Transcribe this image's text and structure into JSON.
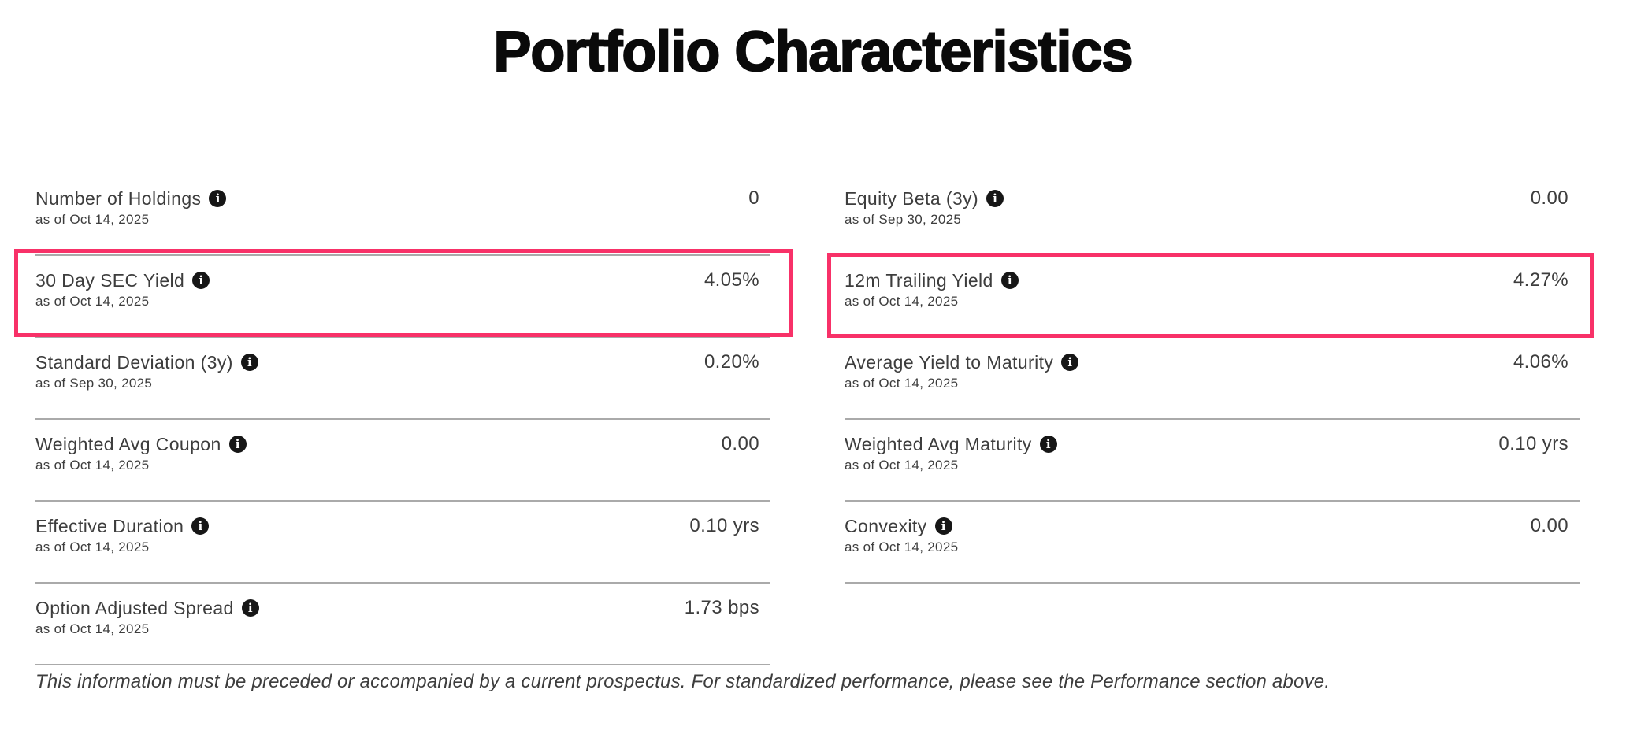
{
  "page": {
    "title": "Portfolio Characteristics",
    "disclaimer": "This information must be preceded or accompanied by a current prospectus. For standardized performance, please see the Performance section above."
  },
  "icons": {
    "info_glyph": "i"
  },
  "colors": {
    "highlight_border": "#F83168",
    "divider": "#AAAAAA",
    "text": "#3D3D3D",
    "title": "#0A0A0A",
    "info_icon_background": "#161616"
  },
  "metrics": {
    "left": [
      {
        "label": "Number of Holdings",
        "value": "0",
        "as_of": "as of Oct 14, 2025",
        "highlighted": false
      },
      {
        "label": "30 Day SEC Yield",
        "value": "4.05%",
        "as_of": "as of Oct 14, 2025",
        "highlighted": true
      },
      {
        "label": "Standard Deviation (3y)",
        "value": "0.20%",
        "as_of": "as of Sep 30, 2025",
        "highlighted": false
      },
      {
        "label": "Weighted Avg Coupon",
        "value": "0.00",
        "as_of": "as of Oct 14, 2025",
        "highlighted": false
      },
      {
        "label": "Effective Duration",
        "value": "0.10 yrs",
        "as_of": "as of Oct 14, 2025",
        "highlighted": false
      },
      {
        "label": "Option Adjusted Spread",
        "value": "1.73 bps",
        "as_of": "as of Oct 14, 2025",
        "highlighted": false
      }
    ],
    "right": [
      {
        "label": "Equity Beta (3y)",
        "value": "0.00",
        "as_of": "as of Sep 30, 2025",
        "highlighted": false
      },
      {
        "label": "12m Trailing Yield",
        "value": "4.27%",
        "as_of": "as of Oct 14, 2025",
        "highlighted": true
      },
      {
        "label": "Average Yield to Maturity",
        "value": "4.06%",
        "as_of": "as of Oct 14, 2025",
        "highlighted": false
      },
      {
        "label": "Weighted Avg Maturity",
        "value": "0.10 yrs",
        "as_of": "as of Oct 14, 2025",
        "highlighted": false
      },
      {
        "label": "Convexity",
        "value": "0.00",
        "as_of": "as of Oct 14, 2025",
        "highlighted": false
      }
    ]
  }
}
